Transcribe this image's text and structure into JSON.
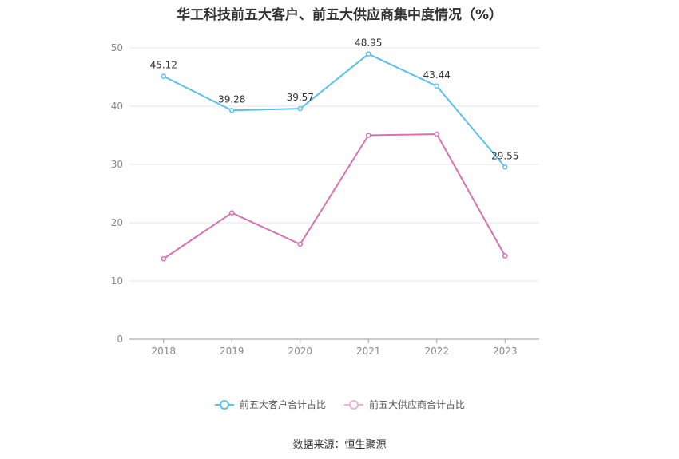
{
  "chart_data": {
    "type": "line",
    "title": "华工科技前五大客户、前五大供应商集中度情况（%）",
    "categories": [
      "2018",
      "2019",
      "2020",
      "2021",
      "2022",
      "2023"
    ],
    "ylim": [
      0,
      50
    ],
    "yticks": [
      0,
      10,
      20,
      30,
      40,
      50
    ],
    "grid": true,
    "legend_position": "bottom",
    "series": [
      {
        "name": "前五大客户合计占比",
        "color": "#5BC0EB",
        "show_labels": true,
        "values": [
          45.12,
          39.28,
          39.57,
          48.95,
          43.44,
          29.55
        ],
        "labels": [
          "45.12",
          "39.28",
          "39.57",
          "48.95",
          "43.44",
          "29.55"
        ]
      },
      {
        "name": "前五大供应商合计占比",
        "color": "#D671B4",
        "show_labels": false,
        "values": [
          13.8,
          21.7,
          16.3,
          35.0,
          35.2,
          14.3
        ]
      }
    ]
  },
  "source": "数据来源：恒生聚源"
}
